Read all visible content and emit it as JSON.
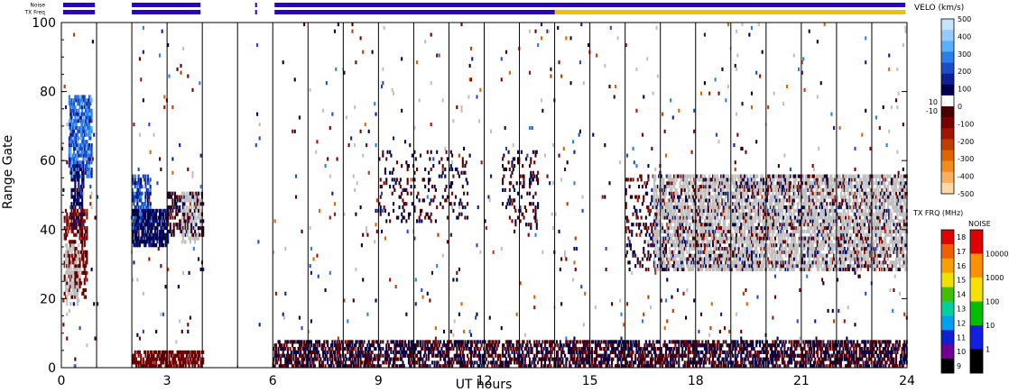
{
  "chart_data": {
    "type": "heatmap",
    "xlabel": "UT hours",
    "ylabel": "Range Gate",
    "xlim": [
      0,
      24
    ],
    "ylim": [
      0,
      100
    ],
    "x_ticks": [
      "0",
      "3",
      "6",
      "9",
      "12",
      "15",
      "18",
      "21",
      "24"
    ],
    "x_tick_values": [
      0,
      3,
      6,
      9,
      12,
      15,
      18,
      21,
      24
    ],
    "y_ticks": [
      "0",
      "20",
      "40",
      "60",
      "80",
      "100"
    ],
    "y_tick_values": [
      0,
      20,
      40,
      60,
      80,
      100
    ],
    "scan_boundaries_hours": [
      1,
      2,
      3,
      4,
      5,
      6,
      7,
      8,
      9,
      10,
      11,
      12,
      13,
      14,
      15,
      16,
      17,
      18,
      19,
      20,
      21,
      22,
      23
    ],
    "top_bars": {
      "noise_label": "Noise",
      "txfreq_label": "TX Freq",
      "segments_hours": [
        [
          0.05,
          0.95
        ],
        [
          2.0,
          3.95
        ],
        [
          5.5,
          5.55
        ],
        [
          6.05,
          23.95
        ]
      ],
      "noise_high_start_hours": 14.0,
      "bar_color": "#2a00c8",
      "noise_high_color": "#f0c000"
    },
    "velocity_colorbar": {
      "title": "VELO (km/s)",
      "tick_labels": [
        "500",
        "400",
        "300",
        "200",
        "100",
        "0",
        "-100",
        "-200",
        "-300",
        "-400",
        "-500"
      ],
      "tick_values": [
        500,
        400,
        300,
        200,
        100,
        0,
        -100,
        -200,
        -300,
        -400,
        -500
      ],
      "ground_labels": [
        "10",
        "-10"
      ],
      "colors": [
        "#c6e4ff",
        "#94ccff",
        "#5aafff",
        "#2a7fe8",
        "#1e4cc8",
        "#0c1f96",
        "#00004a",
        "#ffffff",
        "#4a0000",
        "#7a0000",
        "#a01400",
        "#c03c00",
        "#e06400",
        "#f08c1a",
        "#f8b060",
        "#ffd8a8"
      ],
      "ground_scatter_color": "#c0c0c0"
    },
    "txfreq_colorbar": {
      "title": "TX FRQ (MHz)",
      "tick_labels": [
        "18",
        "17",
        "16",
        "15",
        "14",
        "13",
        "12",
        "11",
        "10",
        "9"
      ],
      "colors": [
        "#e00000",
        "#f06000",
        "#f8a000",
        "#f0e000",
        "#40c000",
        "#00d0a0",
        "#00a0f0",
        "#1020d0",
        "#700090",
        "#000000"
      ]
    },
    "noise_colorbar": {
      "title": "NOISE",
      "tick_labels": [
        "10000",
        "1000",
        "100",
        "10",
        "1"
      ],
      "colors": [
        "#e00000",
        "#ff9000",
        "#f8e000",
        "#00c000",
        "#1020e0",
        "#000000"
      ]
    },
    "echo_regions": [
      {
        "name": "early-blue-patch",
        "x": [
          0.2,
          0.85
        ],
        "y": [
          55,
          78
        ],
        "velocity": [
          150,
          350
        ],
        "density": 0.75
      },
      {
        "name": "early-dark-blue",
        "x": [
          0.25,
          0.6
        ],
        "y": [
          40,
          58
        ],
        "velocity": [
          50,
          150
        ],
        "density": 0.6
      },
      {
        "name": "early-red",
        "x": [
          0.05,
          0.7
        ],
        "y": [
          20,
          45
        ],
        "velocity": [
          -150,
          -30
        ],
        "density": 0.45
      },
      {
        "name": "early-ground",
        "x": [
          0.1,
          0.5
        ],
        "y": [
          18,
          35
        ],
        "velocity": [
          0,
          0
        ],
        "density": 0.4,
        "ground": true
      },
      {
        "name": "hour2-blue",
        "x": [
          2.0,
          2.5
        ],
        "y": [
          40,
          55
        ],
        "velocity": [
          100,
          300
        ],
        "density": 0.6
      },
      {
        "name": "hour2-dark",
        "x": [
          2.0,
          3.0
        ],
        "y": [
          35,
          45
        ],
        "velocity": [
          40,
          150
        ],
        "density": 0.7
      },
      {
        "name": "hour3-mix",
        "x": [
          3.0,
          4.0
        ],
        "y": [
          38,
          50
        ],
        "velocity": [
          -100,
          100
        ],
        "density": 0.45
      },
      {
        "name": "hour3-ground",
        "x": [
          3.4,
          3.95
        ],
        "y": [
          36,
          50
        ],
        "velocity": [
          0,
          0
        ],
        "density": 0.35,
        "ground": true
      },
      {
        "name": "hour9-11",
        "x": [
          9.0,
          11.5
        ],
        "y": [
          42,
          62
        ],
        "velocity": [
          -100,
          100
        ],
        "density": 0.12
      },
      {
        "name": "hour12-13",
        "x": [
          12.5,
          13.5
        ],
        "y": [
          40,
          62
        ],
        "velocity": [
          -100,
          100
        ],
        "density": 0.18
      },
      {
        "name": "late-ground",
        "x": [
          16.8,
          24.0
        ],
        "y": [
          28,
          55
        ],
        "velocity": [
          0,
          0
        ],
        "density": 0.55,
        "ground": true
      },
      {
        "name": "late-mix",
        "x": [
          16.0,
          24.0
        ],
        "y": [
          28,
          55
        ],
        "velocity": [
          -150,
          150
        ],
        "density": 0.18
      },
      {
        "name": "near-range-red",
        "x": [
          2.0,
          4.0
        ],
        "y": [
          0,
          4
        ],
        "velocity": [
          -120,
          -40
        ],
        "density": 0.6
      },
      {
        "name": "near-range-main",
        "x": [
          6.0,
          24.0
        ],
        "y": [
          0,
          7
        ],
        "velocity": [
          -120,
          120
        ],
        "density": 0.55
      }
    ],
    "sparse_echo_density": 0.012
  }
}
